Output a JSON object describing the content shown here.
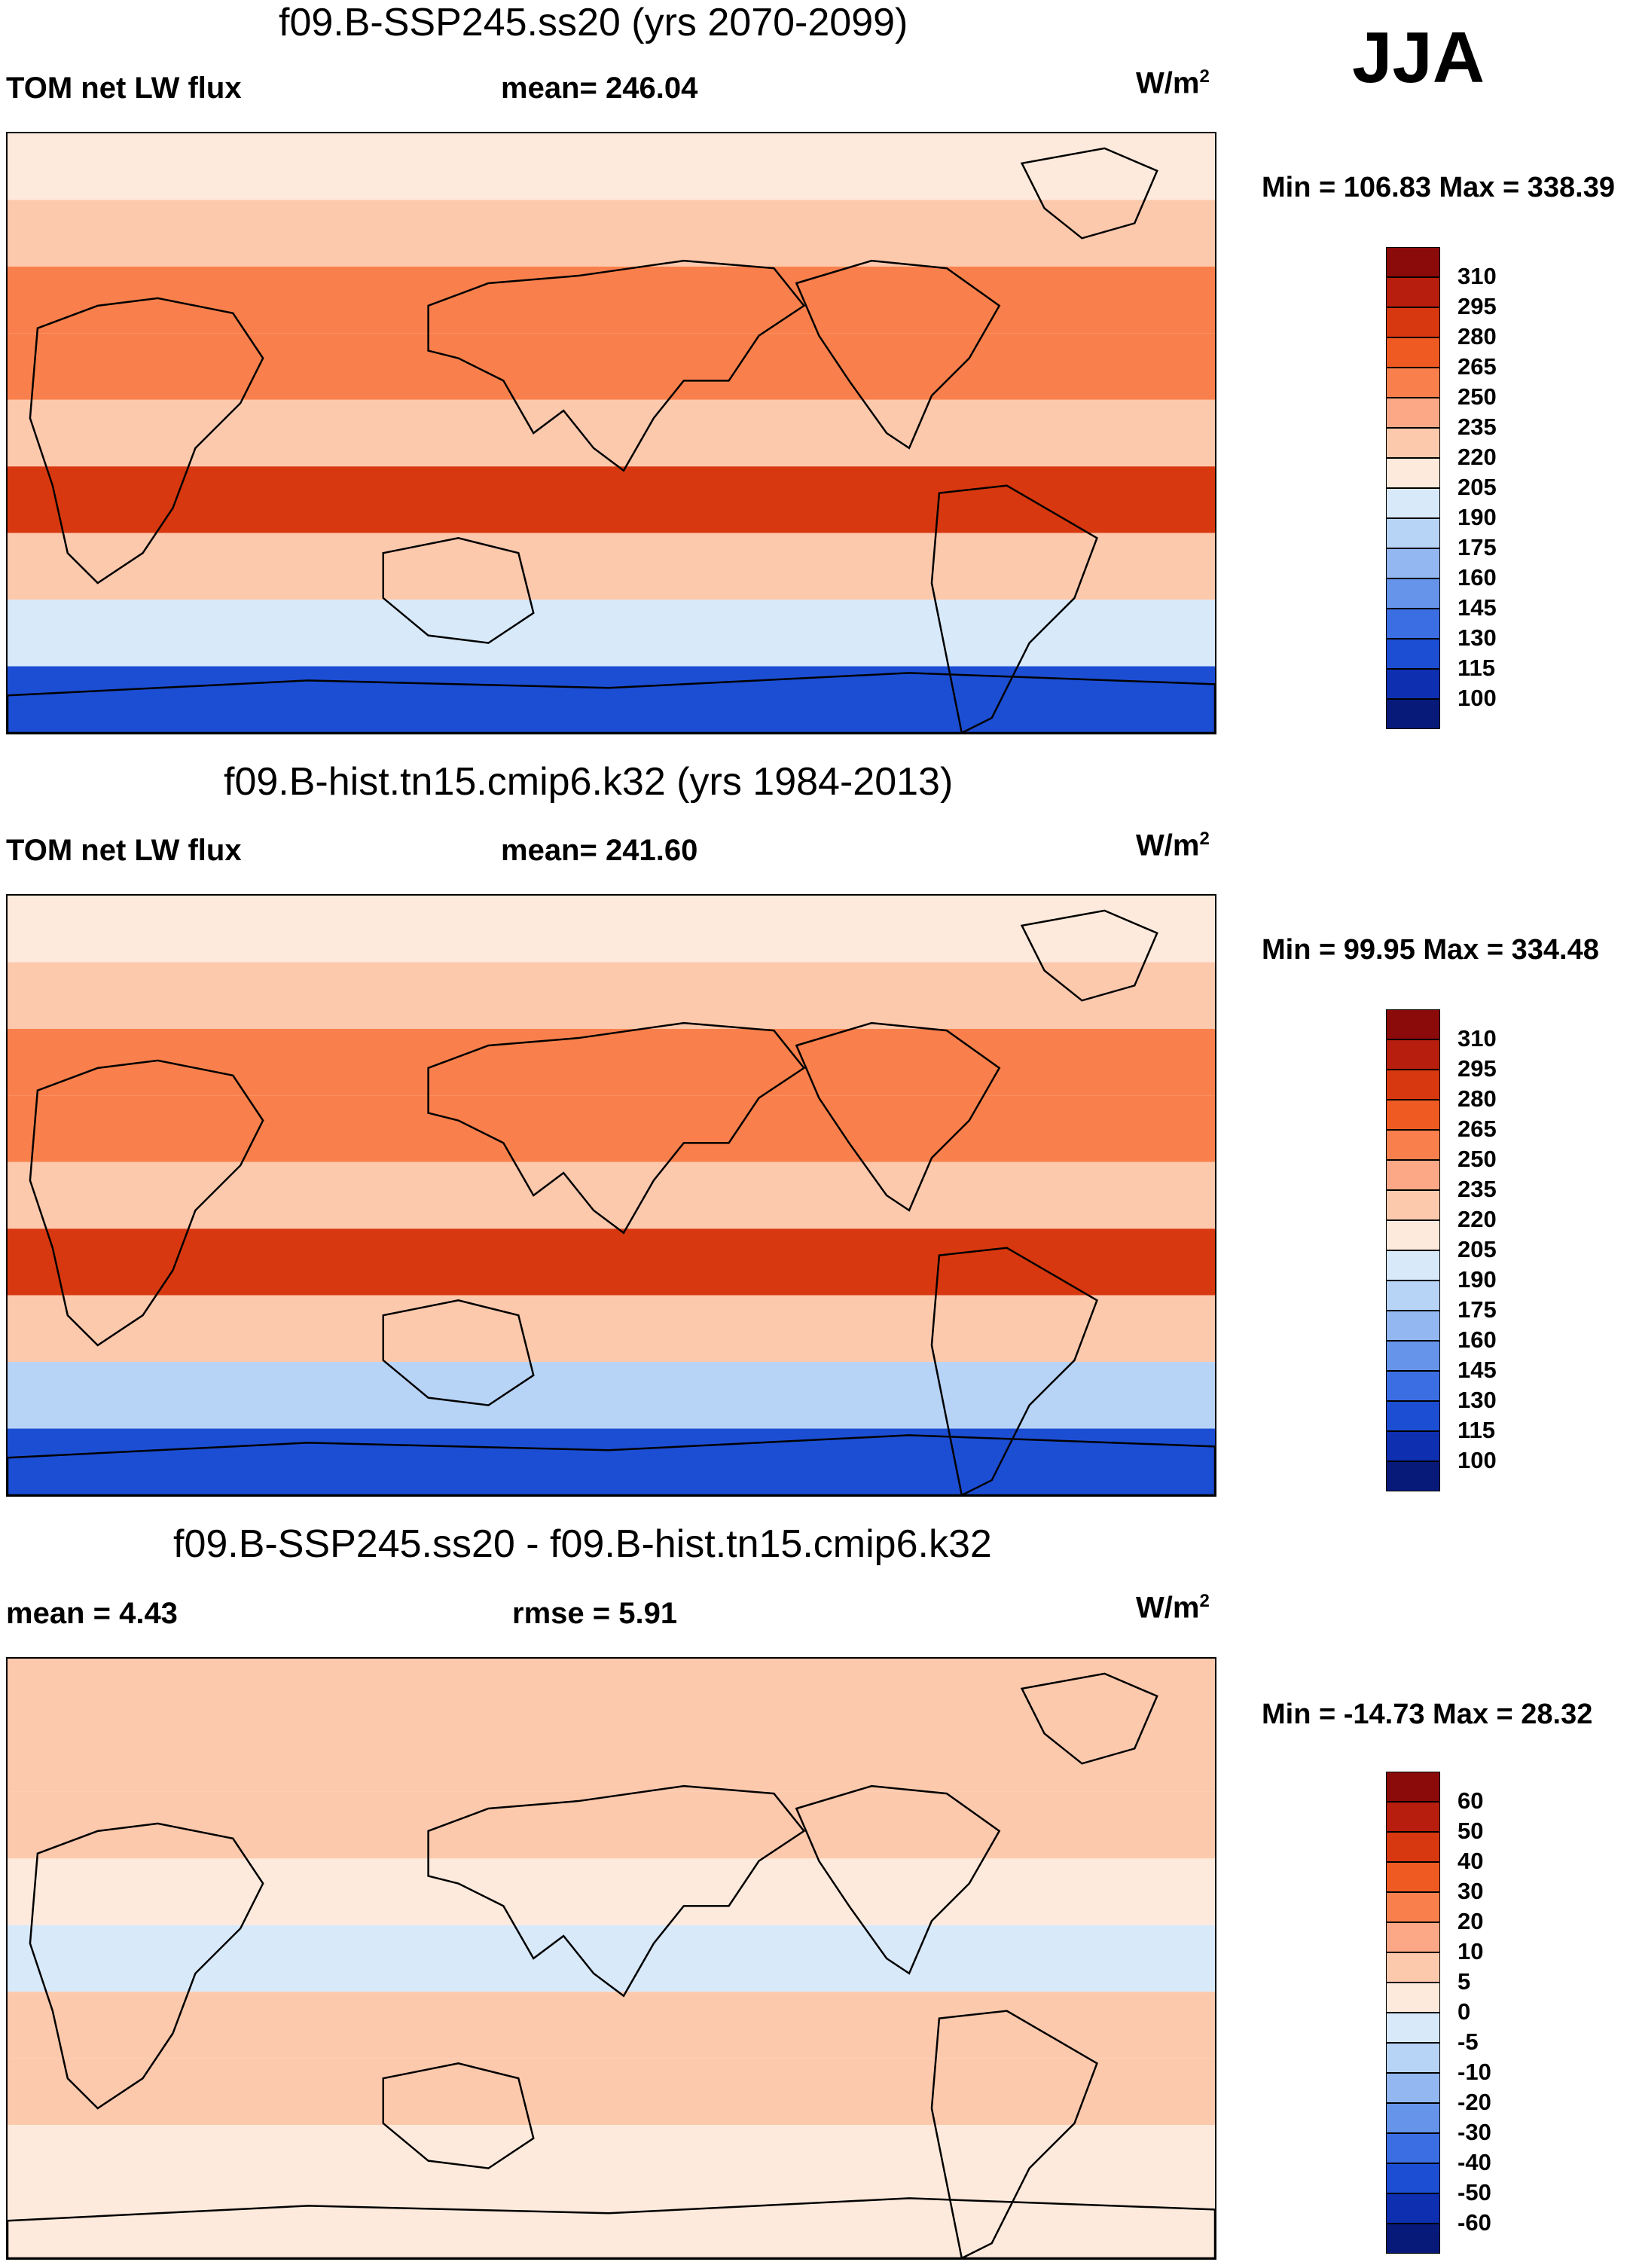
{
  "season": "JJA",
  "panels": [
    {
      "title": "f09.B-SSP245.ss20 (yrs 2070-2099)",
      "left_label": "TOM net LW flux",
      "center_label": "mean= 246.04",
      "units": "W/m",
      "units_sup": "2",
      "minmax": "Min = 106.83 Max = 338.39",
      "colorbar_labels": [
        "310",
        "295",
        "280",
        "265",
        "250",
        "235",
        "220",
        "205",
        "190",
        "175",
        "160",
        "145",
        "130",
        "115",
        "100"
      ]
    },
    {
      "title": "f09.B-hist.tn15.cmip6.k32 (yrs 1984-2013)",
      "left_label": "TOM net LW flux",
      "center_label": "mean= 241.60",
      "units": "W/m",
      "units_sup": "2",
      "minmax": "Min =  99.95 Max = 334.48",
      "colorbar_labels": [
        "310",
        "295",
        "280",
        "265",
        "250",
        "235",
        "220",
        "205",
        "190",
        "175",
        "160",
        "145",
        "130",
        "115",
        "100"
      ]
    },
    {
      "title": "f09.B-SSP245.ss20 - f09.B-hist.tn15.cmip6.k32",
      "left_label": "mean =   4.43",
      "center_label": "rmse =   5.91",
      "units": "W/m",
      "units_sup": "2",
      "minmax": "Min = -14.73 Max =  28.32",
      "colorbar_labels": [
        "60",
        "50",
        "40",
        "30",
        "20",
        "10",
        "5",
        "0",
        "-5",
        "-10",
        "-20",
        "-30",
        "-40",
        "-50",
        "-60"
      ]
    }
  ],
  "colors": {
    "abs_scale": [
      "#8b0a0a",
      "#b81e0d",
      "#d8380f",
      "#ef5a22",
      "#f9804c",
      "#fca886",
      "#fdc9ad",
      "#feeadc",
      "#d8e9fa",
      "#b7d3f6",
      "#93b7f0",
      "#6694ea",
      "#3b6ee3",
      "#1c4ed4",
      "#0d2fb0",
      "#071a7a"
    ],
    "diff_scale": [
      "#8b0a0a",
      "#b81e0d",
      "#d8380f",
      "#ef5a22",
      "#f9804c",
      "#fca886",
      "#fdc9ad",
      "#feeadc",
      "#d8e9fa",
      "#b7d3f6",
      "#93b7f0",
      "#6694ea",
      "#3b6ee3",
      "#1c4ed4",
      "#0d2fb0",
      "#071a7a"
    ]
  },
  "chart_data": [
    {
      "type": "heatmap",
      "title": "f09.B-SSP245.ss20 (yrs 2070-2099)",
      "variable": "TOM net LW flux",
      "units": "W/m2",
      "mean": 246.04,
      "min": 106.83,
      "max": 338.39,
      "contour_levels": [
        100,
        115,
        130,
        145,
        160,
        175,
        190,
        205,
        220,
        235,
        250,
        265,
        280,
        295,
        310
      ],
      "lat_band_profile": [
        {
          "lat": 80,
          "value": 215
        },
        {
          "lat": 60,
          "value": 232
        },
        {
          "lat": 40,
          "value": 262
        },
        {
          "lat": 20,
          "value": 255
        },
        {
          "lat": 0,
          "value": 230
        },
        {
          "lat": -20,
          "value": 285
        },
        {
          "lat": -40,
          "value": 232
        },
        {
          "lat": -60,
          "value": 190
        },
        {
          "lat": -80,
          "value": 120
        }
      ]
    },
    {
      "type": "heatmap",
      "title": "f09.B-hist.tn15.cmip6.k32 (yrs 1984-2013)",
      "variable": "TOM net LW flux",
      "units": "W/m2",
      "mean": 241.6,
      "min": 99.95,
      "max": 334.48,
      "contour_levels": [
        100,
        115,
        130,
        145,
        160,
        175,
        190,
        205,
        220,
        235,
        250,
        265,
        280,
        295,
        310
      ],
      "lat_band_profile": [
        {
          "lat": 80,
          "value": 210
        },
        {
          "lat": 60,
          "value": 228
        },
        {
          "lat": 40,
          "value": 258
        },
        {
          "lat": 20,
          "value": 250
        },
        {
          "lat": 0,
          "value": 225
        },
        {
          "lat": -20,
          "value": 280
        },
        {
          "lat": -40,
          "value": 228
        },
        {
          "lat": -60,
          "value": 185
        },
        {
          "lat": -80,
          "value": 115
        }
      ]
    },
    {
      "type": "heatmap",
      "title": "f09.B-SSP245.ss20 - f09.B-hist.tn15.cmip6.k32",
      "variable": "difference",
      "units": "W/m2",
      "mean": 4.43,
      "rmse": 5.91,
      "min": -14.73,
      "max": 28.32,
      "contour_levels": [
        -60,
        -50,
        -40,
        -30,
        -20,
        -10,
        -5,
        0,
        5,
        10,
        20,
        30,
        40,
        50,
        60
      ],
      "lat_band_profile": [
        {
          "lat": 80,
          "value": 6
        },
        {
          "lat": 60,
          "value": 7
        },
        {
          "lat": 40,
          "value": 6
        },
        {
          "lat": 20,
          "value": 4
        },
        {
          "lat": 0,
          "value": -3
        },
        {
          "lat": -20,
          "value": 5
        },
        {
          "lat": -40,
          "value": 5
        },
        {
          "lat": -60,
          "value": 3
        },
        {
          "lat": -80,
          "value": 4
        }
      ]
    }
  ]
}
